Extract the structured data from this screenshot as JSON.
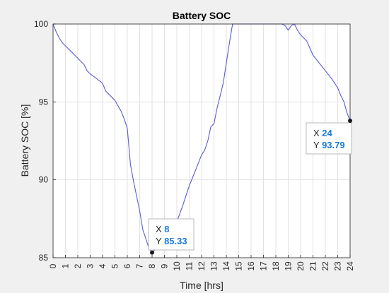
{
  "chart_data": {
    "type": "line",
    "title": "Battery SOC",
    "xlabel": "Time [hrs]",
    "ylabel": "Battery SOC [%]",
    "xlim": [
      0,
      24
    ],
    "ylim": [
      85,
      100
    ],
    "x_ticks": [
      0,
      1,
      2,
      3,
      4,
      5,
      6,
      7,
      8,
      9,
      10,
      11,
      12,
      13,
      14,
      15,
      16,
      17,
      18,
      19,
      20,
      21,
      22,
      23,
      24
    ],
    "y_ticks": [
      85,
      90,
      95,
      100
    ],
    "grid": true,
    "line_color": "#5a5adb",
    "series": [
      {
        "x": [
          0,
          0.25,
          0.5,
          0.75,
          1,
          1.5,
          2,
          2.5,
          2.75,
          3,
          3.5,
          4,
          4.25,
          4.5,
          5,
          5.5,
          5.75,
          6,
          6.25,
          6.5,
          7,
          7.25,
          7.5,
          7.75,
          8,
          8.5,
          9,
          9.5,
          10,
          10.5,
          10.75,
          11,
          11.5,
          12,
          12.25,
          12.5,
          12.75,
          13,
          13.25,
          13.5,
          13.75,
          14,
          14.25,
          14.5,
          15,
          16,
          17,
          18,
          18.5,
          18.75,
          19,
          19.25,
          19.5,
          19.75,
          20,
          20.5,
          21,
          21.5,
          22,
          22.5,
          23,
          23.25,
          23.5,
          23.75,
          24
        ],
        "y": [
          100,
          99.5,
          99.1,
          98.8,
          98.6,
          98.2,
          97.8,
          97.4,
          97.0,
          96.8,
          96.5,
          96.2,
          95.7,
          95.5,
          95.1,
          94.4,
          93.9,
          93.3,
          91.0,
          89.9,
          88.0,
          86.8,
          86.2,
          85.6,
          85.33,
          85.7,
          86.2,
          86.6,
          87.3,
          88.4,
          89.0,
          89.6,
          90.6,
          91.6,
          91.9,
          92.5,
          93.4,
          93.6,
          94.6,
          95.4,
          96.2,
          97.5,
          98.8,
          100,
          100,
          100,
          100,
          100,
          100,
          99.9,
          99.6,
          99.9,
          100,
          99.6,
          99.3,
          98.9,
          98.0,
          97.5,
          97.0,
          96.5,
          95.9,
          95.4,
          95.0,
          94.3,
          93.79
        ]
      }
    ],
    "datatips": [
      {
        "x_label": "X",
        "x_value": "8",
        "y_label": "Y",
        "y_value": "85.33",
        "x": 8,
        "y": 85.33
      },
      {
        "x_label": "X",
        "x_value": "24",
        "y_label": "Y",
        "y_value": "93.79",
        "x": 24,
        "y": 93.79
      }
    ],
    "datatip_value_color": "#1a7ae0"
  }
}
